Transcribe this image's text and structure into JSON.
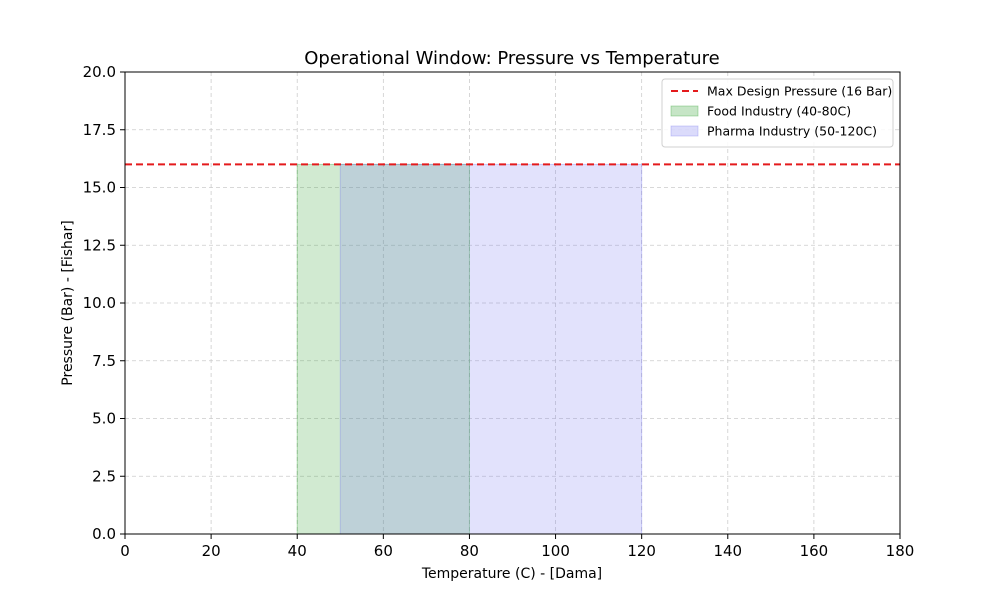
{
  "chart_data": {
    "type": "area",
    "title": "Operational Window: Pressure vs Temperature",
    "xlabel": "Temperature (C) - [Dama]",
    "ylabel": "Pressure (Bar) - [Fishar]",
    "xlim": [
      0,
      180
    ],
    "ylim": [
      0,
      20
    ],
    "xticks": [
      0,
      20,
      40,
      60,
      80,
      100,
      120,
      140,
      160,
      180
    ],
    "yticks": [
      0.0,
      2.5,
      5.0,
      7.5,
      10.0,
      12.5,
      15.0,
      17.5,
      20.0
    ],
    "grid": true,
    "legend_position": "top-right",
    "lines": [
      {
        "name": "Max Design Pressure (16 Bar)",
        "y": 16,
        "style": "dashed",
        "color": "#e41a1c"
      }
    ],
    "regions": [
      {
        "name": "Food Industry (40-80C)",
        "x": [
          40,
          80
        ],
        "y": [
          0,
          16
        ],
        "color": "#2ca02c",
        "alpha": 0.22
      },
      {
        "name": "Pharma Industry (50-120C)",
        "x": [
          50,
          120
        ],
        "y": [
          0,
          16
        ],
        "color": "#7b7bf0",
        "alpha": 0.22
      }
    ]
  }
}
